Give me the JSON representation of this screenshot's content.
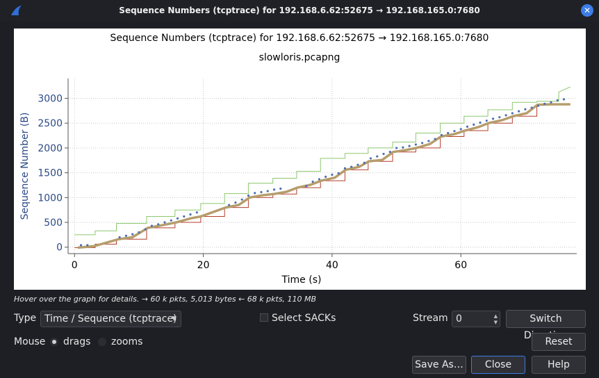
{
  "window": {
    "title": "Sequence Numbers (tcptrace) for 192.168.6.62:52675 → 192.168.165.0:7680"
  },
  "chart_data": {
    "type": "line",
    "title": "Sequence Numbers (tcptrace) for 192.168.6.62:52675 → 192.168.165.0:7680",
    "subtitle": "slowloris.pcapng",
    "xlabel": "Time (s)",
    "ylabel": "Sequence Number (B)",
    "xlim": [
      -1,
      78
    ],
    "ylim": [
      -130,
      3400
    ],
    "xticks": [
      0,
      20,
      40,
      60
    ],
    "yticks": [
      0,
      500,
      1000,
      1500,
      2000,
      2500,
      3000
    ],
    "grid": true,
    "series": [
      {
        "role": "receive-window",
        "color": "#8cc86e",
        "x": [
          0,
          3.2,
          3.2,
          6.5,
          6.5,
          11.2,
          11.2,
          15.6,
          15.6,
          19.6,
          19.6,
          23.3,
          23.3,
          27.0,
          27.0,
          30.8,
          30.8,
          34.5,
          34.5,
          38.2,
          38.2,
          42.0,
          42.0,
          45.6,
          45.6,
          49.4,
          49.4,
          53.0,
          53.0,
          56.8,
          56.8,
          60.5,
          60.5,
          64.2,
          64.2,
          68.0,
          68.0,
          71.8,
          71.8,
          75.2,
          75.2,
          77.0
        ],
        "y": [
          250,
          250,
          330,
          330,
          480,
          480,
          620,
          620,
          750,
          750,
          880,
          880,
          1080,
          1080,
          1290,
          1290,
          1390,
          1390,
          1530,
          1530,
          1790,
          1790,
          1890,
          1890,
          2000,
          2000,
          2120,
          2120,
          2300,
          2300,
          2500,
          2500,
          2640,
          2640,
          2770,
          2770,
          2920,
          2920,
          2940,
          2940,
          3130,
          3230
        ]
      },
      {
        "role": "ack",
        "color": "#b43c2a",
        "x": [
          0,
          3.2,
          3.2,
          6.5,
          6.5,
          11.2,
          11.2,
          15.6,
          15.6,
          19.6,
          19.6,
          23.3,
          23.3,
          27.0,
          27.0,
          30.8,
          30.8,
          34.5,
          34.5,
          38.2,
          38.2,
          42.0,
          42.0,
          45.6,
          45.6,
          49.4,
          49.4,
          53.0,
          53.0,
          56.8,
          56.8,
          60.5,
          60.5,
          64.2,
          64.2,
          68.0,
          68.0,
          71.8,
          71.8,
          75.2,
          75.2,
          77.0
        ],
        "y": [
          -10,
          -10,
          60,
          60,
          160,
          160,
          390,
          390,
          500,
          500,
          620,
          620,
          800,
          800,
          1000,
          1000,
          1070,
          1070,
          1200,
          1200,
          1340,
          1340,
          1560,
          1560,
          1730,
          1730,
          1920,
          1920,
          2000,
          2000,
          2230,
          2230,
          2350,
          2350,
          2500,
          2500,
          2640,
          2640,
          2870,
          2870,
          2880,
          2880
        ]
      },
      {
        "role": "sequence-segments",
        "color": "#b69d6c",
        "x": [
          0.5,
          3.0,
          6.8,
          9.0,
          11.4,
          13.5,
          15.8,
          18.0,
          19.6,
          23.5,
          25.5,
          27.2,
          29.3,
          30.9,
          33.0,
          34.6,
          36.7,
          38.3,
          40.4,
          42.1,
          44.2,
          45.7,
          47.8,
          49.5,
          51.6,
          53.1,
          55.2,
          56.9,
          59.0,
          60.6,
          62.7,
          64.3,
          66.4,
          68.1,
          70.2,
          71.9,
          74.0,
          75.3,
          77.0
        ],
        "y": [
          -10,
          20,
          160,
          200,
          390,
          440,
          500,
          580,
          620,
          800,
          850,
          1000,
          1050,
          1070,
          1120,
          1200,
          1260,
          1340,
          1400,
          1560,
          1620,
          1730,
          1760,
          1920,
          1960,
          2000,
          2080,
          2230,
          2280,
          2350,
          2420,
          2500,
          2560,
          2640,
          2700,
          2870,
          2880,
          2880,
          2880
        ]
      },
      {
        "role": "retransmissions",
        "color": "#4c6fb2",
        "x": [
          1,
          2,
          7,
          8,
          9,
          10,
          11,
          12,
          13,
          14,
          15,
          16,
          17,
          18,
          19,
          24,
          25,
          26,
          27,
          28,
          29,
          30,
          31,
          32,
          36,
          37,
          38,
          39,
          40,
          41,
          42,
          43,
          44,
          45,
          46,
          47,
          48,
          49,
          50,
          51,
          52,
          53,
          54,
          55,
          56,
          57,
          58,
          59,
          60,
          61,
          62,
          63,
          64,
          65,
          66,
          67,
          68,
          69,
          70,
          71,
          72,
          73,
          74,
          75,
          76
        ],
        "y": [
          40,
          40,
          200,
          230,
          260,
          300,
          360,
          430,
          460,
          500,
          540,
          580,
          620,
          660,
          700,
          850,
          900,
          960,
          1040,
          1090,
          1110,
          1130,
          1160,
          1180,
          1230,
          1320,
          1370,
          1420,
          1460,
          1490,
          1590,
          1620,
          1660,
          1700,
          1790,
          1830,
          1880,
          1920,
          2000,
          2010,
          2040,
          2070,
          2100,
          2140,
          2180,
          2260,
          2300,
          2340,
          2380,
          2430,
          2470,
          2510,
          2550,
          2590,
          2620,
          2660,
          2700,
          2740,
          2780,
          2810,
          2850,
          2890,
          2920,
          2960,
          2980
        ]
      }
    ]
  },
  "info": {
    "text": "Hover over the graph for details. → 60 k pkts, 5,013 bytes ← 68 k pkts, 110 MB"
  },
  "controls": {
    "type_label": "Type",
    "type_value": "Time / Sequence (tcptrace)",
    "select_sacks_label": "Select SACKs",
    "stream_label": "Stream",
    "stream_value": "0",
    "switch_direction_label": "Switch Direction",
    "mouse_label": "Mouse",
    "drags_label": "drags",
    "zooms_label": "zooms",
    "reset_label": "Reset",
    "save_as_label": "Save As…",
    "close_label": "Close",
    "help_label": "Help"
  }
}
